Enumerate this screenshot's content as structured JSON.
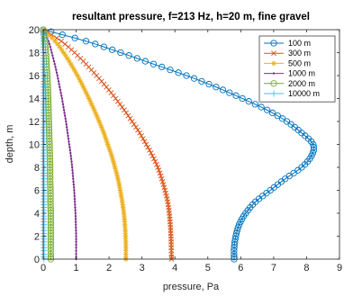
{
  "chart_data": {
    "type": "line",
    "title": "resultant pressure, f=213 Hz, h=20 m, fine gravel",
    "xlabel": "pressure, Pa",
    "ylabel": "depth, m",
    "xlim": [
      0,
      9
    ],
    "ylim": [
      0,
      20
    ],
    "xticks": [
      "0",
      "1",
      "2",
      "3",
      "4",
      "5",
      "6",
      "7",
      "8",
      "9"
    ],
    "yticks": [
      "0",
      "2",
      "4",
      "6",
      "8",
      "10",
      "12",
      "14",
      "16",
      "18",
      "20"
    ],
    "grid": false,
    "legend_position": "top-right",
    "y": [
      20,
      19,
      18,
      17,
      16,
      15,
      14,
      13,
      12,
      11,
      10,
      9,
      8,
      7,
      6,
      5,
      4,
      3,
      2,
      1,
      0
    ],
    "series": [
      {
        "name": "100 m",
        "color": "#0072bd",
        "marker": "circle",
        "values": [
          0,
          1.3,
          2.35,
          3.35,
          4.35,
          5.25,
          6.05,
          6.8,
          7.4,
          7.85,
          8.2,
          8.15,
          7.85,
          7.35,
          6.9,
          6.45,
          6.15,
          5.95,
          5.85,
          5.8,
          5.8
        ]
      },
      {
        "name": "300 m",
        "color": "#d95319",
        "marker": "x",
        "values": [
          0,
          0.55,
          0.95,
          1.3,
          1.62,
          1.92,
          2.2,
          2.46,
          2.7,
          2.93,
          3.13,
          3.32,
          3.48,
          3.6,
          3.7,
          3.78,
          3.83,
          3.86,
          3.88,
          3.89,
          3.9
        ]
      },
      {
        "name": "500 m",
        "color": "#edb120",
        "marker": "asterisk",
        "values": [
          0,
          0.36,
          0.62,
          0.84,
          1.04,
          1.22,
          1.39,
          1.55,
          1.7,
          1.84,
          1.96,
          2.08,
          2.18,
          2.27,
          2.34,
          2.4,
          2.45,
          2.48,
          2.5,
          2.51,
          2.51
        ]
      },
      {
        "name": "1000 m",
        "color": "#7e2f8e",
        "marker": "dot",
        "values": [
          0,
          0.16,
          0.26,
          0.35,
          0.43,
          0.5,
          0.57,
          0.63,
          0.69,
          0.74,
          0.79,
          0.84,
          0.88,
          0.91,
          0.94,
          0.96,
          0.98,
          0.99,
          1.0,
          1.0,
          1.0
        ]
      },
      {
        "name": "2000 m",
        "color": "#77ac30",
        "marker": "circle",
        "values": [
          0,
          0.05,
          0.08,
          0.1,
          0.12,
          0.14,
          0.15,
          0.16,
          0.17,
          0.18,
          0.19,
          0.2,
          0.21,
          0.21,
          0.22,
          0.22,
          0.23,
          0.23,
          0.23,
          0.23,
          0.23
        ]
      },
      {
        "name": "10000 m",
        "color": "#4dbeee",
        "marker": "plus",
        "values": [
          0,
          0.01,
          0.01,
          0.02,
          0.02,
          0.02,
          0.02,
          0.02,
          0.02,
          0.02,
          0.02,
          0.02,
          0.02,
          0.02,
          0.02,
          0.02,
          0.02,
          0.02,
          0.02,
          0.02,
          0.02
        ]
      }
    ]
  }
}
